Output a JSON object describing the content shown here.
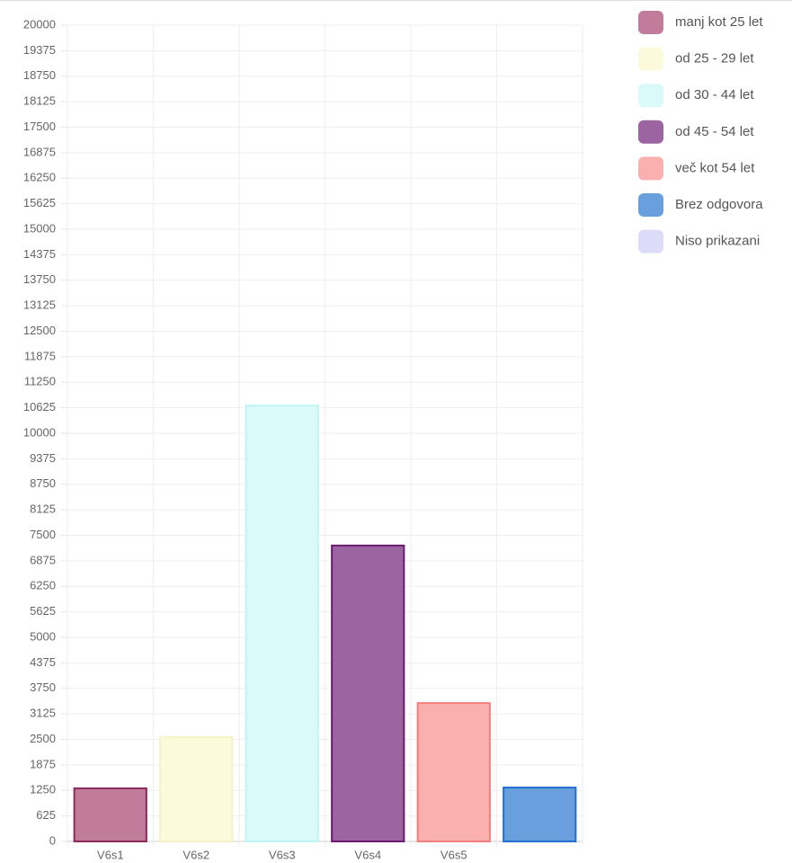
{
  "chart_data": {
    "type": "bar",
    "categories": [
      "V6s1",
      "V6s2",
      "V6s3",
      "V6s4",
      "V6s5",
      null
    ],
    "series": [
      {
        "name": "manj kot 25 let",
        "color": "#c07c9a",
        "border_color": "#8b2a5a",
        "values": [
          1300,
          null,
          null,
          null,
          null,
          null
        ]
      },
      {
        "name": "od 25 - 29 let",
        "color": "#fbfbdc",
        "border_color": "#f3f3c4",
        "values": [
          null,
          2550,
          null,
          null,
          null,
          null
        ]
      },
      {
        "name": "od 30 - 44 let",
        "color": "#dafafa",
        "border_color": "#bff4f4",
        "values": [
          null,
          null,
          10680,
          null,
          null,
          null
        ]
      },
      {
        "name": "od 45 - 54 let",
        "color": "#9c64a0",
        "border_color": "#6a1b6e",
        "values": [
          null,
          null,
          null,
          7250,
          null,
          null
        ]
      },
      {
        "name": "več kot 54 let",
        "color": "#fbb0b0",
        "border_color": "#f47f7f",
        "values": [
          null,
          null,
          null,
          null,
          3390,
          null
        ]
      },
      {
        "name": "Brez odgovora",
        "color": "#6a9fde",
        "border_color": "#1f6fcf",
        "values": [
          null,
          null,
          null,
          null,
          null,
          1320
        ]
      },
      {
        "name": "Niso prikazani",
        "color": "#dcdcf8",
        "border_color": "#dcdcf8",
        "values": [
          null,
          null,
          null,
          null,
          null,
          null
        ]
      }
    ],
    "ylim": [
      0,
      20000
    ],
    "yticks": [
      0,
      625,
      1250,
      1875,
      2500,
      3125,
      3750,
      4375,
      5000,
      5625,
      6250,
      6875,
      7500,
      8125,
      8750,
      9375,
      10000,
      10625,
      11250,
      11875,
      12500,
      13125,
      13750,
      14375,
      15000,
      15625,
      16250,
      16875,
      17500,
      18125,
      18750,
      19375,
      20000
    ],
    "grid": true,
    "legend": "right"
  }
}
